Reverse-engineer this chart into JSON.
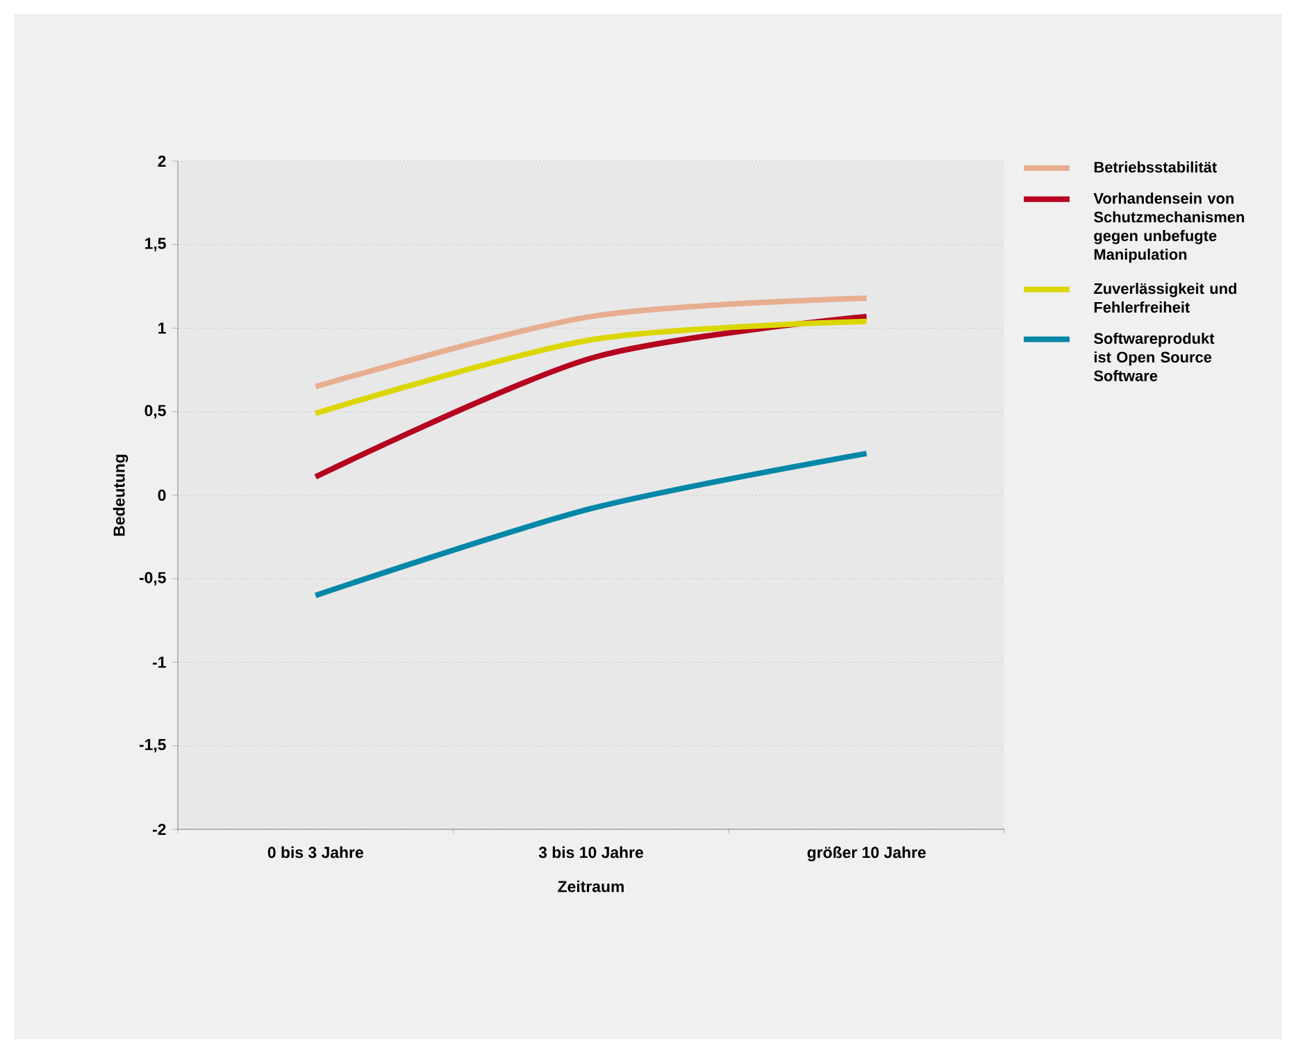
{
  "chart_data": {
    "type": "line",
    "xlabel": "Zeitraum",
    "ylabel": "Bedeutung",
    "categories": [
      "0 bis 3 Jahre",
      "3 bis 10 Jahre",
      "größer 10 Jahre"
    ],
    "ylim": [
      -2,
      2
    ],
    "yticks": [
      {
        "value": -2,
        "label": "-2"
      },
      {
        "value": -1.5,
        "label": "-1,5"
      },
      {
        "value": -1,
        "label": "-1"
      },
      {
        "value": -0.5,
        "label": "-0,5"
      },
      {
        "value": 0,
        "label": "0"
      },
      {
        "value": 0.5,
        "label": "0,5"
      },
      {
        "value": 1,
        "label": "1"
      },
      {
        "value": 1.5,
        "label": "1,5"
      },
      {
        "value": 2,
        "label": "2"
      }
    ],
    "grid": "y",
    "legend": "right",
    "marker": "none",
    "line_style": "solid",
    "series": [
      {
        "name": "Betriebsstabilität",
        "color": "#e8ae90",
        "values": [
          0.65,
          1.07,
          1.18
        ]
      },
      {
        "name": "Vorhandensein von Schutzmechanismen gegen unbefugte Manipulation",
        "color": "#b5001f",
        "values": [
          0.11,
          0.82,
          1.07
        ]
      },
      {
        "name": "Zuverlässigkeit und Fehlerfreiheit",
        "color": "#dcd600",
        "values": [
          0.49,
          0.93,
          1.04
        ]
      },
      {
        "name": "Softwareprodukt ist Open Source Software",
        "color": "#0087a8",
        "values": [
          -0.6,
          -0.08,
          0.25
        ]
      }
    ]
  }
}
